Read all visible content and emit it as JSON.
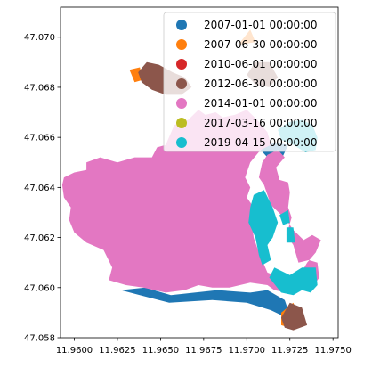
{
  "chart_data": {
    "type": "map",
    "xlim": [
      11.9592,
      11.9753
    ],
    "ylim": [
      47.058,
      47.0712
    ],
    "x_ticks": [
      {
        "value": 11.96,
        "label": "11.9600"
      },
      {
        "value": 11.9625,
        "label": "11.9625"
      },
      {
        "value": 11.965,
        "label": "11.9650"
      },
      {
        "value": 11.9675,
        "label": "11.9675"
      },
      {
        "value": 11.97,
        "label": "11.9700"
      },
      {
        "value": 11.9725,
        "label": "11.9725"
      },
      {
        "value": 11.975,
        "label": "11.9750"
      }
    ],
    "y_ticks": [
      {
        "value": 47.058,
        "label": "47.058"
      },
      {
        "value": 47.06,
        "label": "47.060"
      },
      {
        "value": 47.062,
        "label": "47.062"
      },
      {
        "value": 47.064,
        "label": "47.064"
      },
      {
        "value": 47.066,
        "label": "47.066"
      },
      {
        "value": 47.068,
        "label": "47.068"
      },
      {
        "value": 47.07,
        "label": "47.070"
      }
    ],
    "legend_position": "top-right",
    "series": [
      {
        "name": "2007-01-01 00:00:00",
        "color": "#1f77b4",
        "polygons": [
          [
            [
              11.9627,
              47.0599
            ],
            [
              11.9641,
              47.06
            ],
            [
              11.9656,
              47.0597
            ],
            [
              11.9683,
              47.0599
            ],
            [
              11.9702,
              47.0598
            ],
            [
              11.9712,
              47.0599
            ],
            [
              11.9722,
              47.0595
            ],
            [
              11.9726,
              47.0587
            ],
            [
              11.9714,
              47.0591
            ],
            [
              11.97,
              47.0594
            ],
            [
              11.968,
              47.0595
            ],
            [
              11.9655,
              47.0594
            ],
            [
              11.9638,
              47.0597
            ]
          ],
          [
            [
              11.9708,
              47.0655
            ],
            [
              11.9716,
              47.0658
            ],
            [
              11.9724,
              47.0657
            ],
            [
              11.972,
              47.0651
            ],
            [
              11.9712,
              47.0652
            ]
          ],
          [
            [
              11.9697,
              47.063
            ],
            [
              11.9703,
              47.0633
            ],
            [
              11.9706,
              47.0628
            ],
            [
              11.97,
              47.0626
            ]
          ]
        ]
      },
      {
        "name": "2007-06-30 00:00:00",
        "color": "#ff7f0e",
        "polygons": [
          [
            [
              11.9632,
              47.0687
            ],
            [
              11.9638,
              47.0688
            ],
            [
              11.964,
              47.0683
            ],
            [
              11.9635,
              47.0682
            ]
          ],
          [
            [
              11.972,
              47.059
            ],
            [
              11.9727,
              47.0594
            ],
            [
              11.973,
              47.0588
            ],
            [
              11.9725,
              47.0584
            ],
            [
              11.972,
              47.0585
            ]
          ],
          [
            [
              11.9695,
              47.0697
            ],
            [
              11.9702,
              47.0703
            ],
            [
              11.9705,
              47.0698
            ]
          ]
        ]
      },
      {
        "name": "2010-06-01 00:00:00",
        "color": "#d62728",
        "polygons": [
          [
            [
              11.9725,
              47.0589
            ],
            [
              11.9728,
              47.0591
            ],
            [
              11.9729,
              47.0588
            ]
          ]
        ]
      },
      {
        "name": "2012-06-30 00:00:00",
        "color": "#8c564b",
        "polygons": [
          [
            [
              11.9637,
              47.0686
            ],
            [
              11.9642,
              47.069
            ],
            [
              11.9649,
              47.0689
            ],
            [
              11.9657,
              47.0686
            ],
            [
              11.9664,
              47.0684
            ],
            [
              11.9668,
              47.068
            ],
            [
              11.9662,
              47.0677
            ],
            [
              11.9653,
              47.0677
            ],
            [
              11.9645,
              47.0679
            ],
            [
              11.9639,
              47.0682
            ]
          ],
          [
            [
              11.97,
              47.0685
            ],
            [
              11.9705,
              47.069
            ],
            [
              11.9713,
              47.069
            ],
            [
              11.9718,
              47.0684
            ],
            [
              11.9713,
              47.068
            ],
            [
              11.9705,
              47.0681
            ]
          ],
          [
            [
              11.972,
              47.0588
            ],
            [
              11.9725,
              47.0594
            ],
            [
              11.9732,
              47.0592
            ],
            [
              11.9735,
              47.0585
            ],
            [
              11.9727,
              47.0583
            ],
            [
              11.9722,
              47.0584
            ]
          ]
        ]
      },
      {
        "name": "2014-01-01 00:00:00",
        "color": "#e377c2",
        "polygons": [
          [
            [
              11.9594,
              47.0644
            ],
            [
              11.96,
              47.0646
            ],
            [
              11.9607,
              47.0647
            ],
            [
              11.9607,
              47.065
            ],
            [
              11.9615,
              47.0652
            ],
            [
              11.9625,
              47.065
            ],
            [
              11.9635,
              47.0652
            ],
            [
              11.9645,
              47.0652
            ],
            [
              11.9648,
              47.0656
            ],
            [
              11.9653,
              47.0657
            ],
            [
              11.9658,
              47.0665
            ],
            [
              11.9666,
              47.0667
            ],
            [
              11.9672,
              47.0671
            ],
            [
              11.9676,
              47.0669
            ],
            [
              11.9682,
              47.067
            ],
            [
              11.9686,
              47.0668
            ],
            [
              11.9693,
              47.0669
            ],
            [
              11.97,
              47.0671
            ],
            [
              11.9706,
              47.0667
            ],
            [
              11.9712,
              47.0662
            ],
            [
              11.9714,
              47.0657
            ],
            [
              11.9708,
              47.0655
            ],
            [
              11.9702,
              47.065
            ],
            [
              11.9699,
              47.0644
            ],
            [
              11.9702,
              47.064
            ],
            [
              11.97,
              47.0636
            ],
            [
              11.9704,
              47.0632
            ],
            [
              11.9703,
              47.0626
            ],
            [
              11.9704,
              47.062
            ],
            [
              11.9707,
              47.0614
            ],
            [
              11.9712,
              47.0606
            ],
            [
              11.972,
              47.0604
            ],
            [
              11.973,
              47.0604
            ],
            [
              11.9735,
              47.061
            ],
            [
              11.974,
              47.0614
            ],
            [
              11.9743,
              47.0619
            ],
            [
              11.9738,
              47.0621
            ],
            [
              11.9733,
              47.0619
            ],
            [
              11.9727,
              47.0623
            ],
            [
              11.9724,
              47.0626
            ],
            [
              11.972,
              47.0629
            ],
            [
              11.9714,
              47.0633
            ],
            [
              11.9712,
              47.0637
            ],
            [
              11.971,
              47.0641
            ],
            [
              11.9707,
              47.0644
            ],
            [
              11.9709,
              47.065
            ],
            [
              11.9712,
              47.0653
            ],
            [
              11.9718,
              47.0655
            ],
            [
              11.9722,
              47.0652
            ],
            [
              11.9717,
              47.0648
            ],
            [
              11.9719,
              47.0643
            ],
            [
              11.9724,
              47.0642
            ],
            [
              11.9725,
              47.0638
            ],
            [
              11.9724,
              47.0632
            ],
            [
              11.9726,
              47.0628
            ],
            [
              11.9723,
              47.0621
            ],
            [
              11.9727,
              47.0617
            ],
            [
              11.973,
              47.061
            ],
            [
              11.9736,
              47.0611
            ],
            [
              11.9741,
              47.061
            ],
            [
              11.9742,
              47.0604
            ],
            [
              11.9739,
              47.0601
            ],
            [
              11.9731,
              47.06
            ],
            [
              11.9723,
              47.0598
            ],
            [
              11.9716,
              47.0599
            ],
            [
              11.9712,
              47.0601
            ],
            [
              11.9702,
              47.0602
            ],
            [
              11.969,
              47.06
            ],
            [
              11.968,
              47.06
            ],
            [
              11.9672,
              47.0601
            ],
            [
              11.9664,
              47.0599
            ],
            [
              11.9653,
              47.0598
            ],
            [
              11.964,
              47.06
            ],
            [
              11.963,
              47.0601
            ],
            [
              11.962,
              47.0603
            ],
            [
              11.9622,
              47.0608
            ],
            [
              11.9617,
              47.0615
            ],
            [
              11.9607,
              47.0618
            ],
            [
              11.96,
              47.0622
            ],
            [
              11.9597,
              47.0627
            ],
            [
              11.9598,
              47.0632
            ],
            [
              11.9594,
              47.0636
            ],
            [
              11.9593,
              47.0641
            ]
          ]
        ]
      },
      {
        "name": "2017-03-16 00:00:00",
        "color": "#bcbd22",
        "polygons": []
      },
      {
        "name": "2019-04-15 00:00:00",
        "color": "#17becf",
        "polygons": [
          [
            [
              11.9704,
              47.0637
            ],
            [
              11.971,
              47.0639
            ],
            [
              11.9715,
              47.0632
            ],
            [
              11.9718,
              47.0626
            ],
            [
              11.9715,
              47.062
            ],
            [
              11.9712,
              47.0617
            ],
            [
              11.9714,
              47.0611
            ],
            [
              11.9709,
              47.0609
            ],
            [
              11.9707,
              47.0613
            ],
            [
              11.9705,
              47.062
            ],
            [
              11.9701,
              47.0626
            ],
            [
              11.9702,
              47.0632
            ]
          ],
          [
            [
              11.9719,
              47.0629
            ],
            [
              11.9724,
              47.0631
            ],
            [
              11.9725,
              47.0626
            ],
            [
              11.9721,
              47.0625
            ]
          ],
          [
            [
              11.9723,
              47.0624
            ],
            [
              11.9727,
              47.0624
            ],
            [
              11.9728,
              47.0618
            ],
            [
              11.9723,
              47.0618
            ]
          ],
          [
            [
              11.9713,
              47.0604
            ],
            [
              11.972,
              47.0598
            ],
            [
              11.9727,
              47.0597
            ],
            [
              11.9732,
              47.0599
            ],
            [
              11.9737,
              47.0598
            ],
            [
              11.9741,
              47.0601
            ],
            [
              11.974,
              47.0608
            ],
            [
              11.9732,
              47.0608
            ],
            [
              11.9725,
              47.0605
            ],
            [
              11.9716,
              47.0608
            ]
          ],
          [
            [
              11.9718,
              47.0663
            ],
            [
              11.9724,
              47.0666
            ],
            [
              11.9732,
              47.0667
            ],
            [
              11.9738,
              47.0665
            ],
            [
              11.9741,
              47.066
            ],
            [
              11.974,
              47.0655
            ],
            [
              11.9734,
              47.0654
            ],
            [
              11.9727,
              47.0657
            ],
            [
              11.972,
              47.0659
            ]
          ]
        ]
      }
    ]
  }
}
